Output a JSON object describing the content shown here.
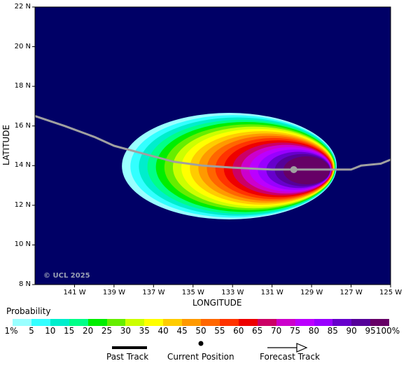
{
  "map": {
    "ylabel": "LATITUDE",
    "xlabel": "LONGITUDE",
    "lat_ticks": [
      "22 N",
      "20 N",
      "18 N",
      "16 N",
      "14 N",
      "12 N",
      "10 N",
      "8 N"
    ],
    "lon_ticks": [
      "141 W",
      "139 W",
      "137 W",
      "135 W",
      "133 W",
      "131 W",
      "129 W",
      "127 W",
      "125 W"
    ],
    "copyright": "© UCL 2025",
    "ocean_color": "#000066",
    "track_color": "#a0a0a0",
    "current_position": {
      "lon": -129.9,
      "lat": 13.8
    },
    "track": [
      {
        "lon": -143.0,
        "lat": 16.5
      },
      {
        "lon": -141.5,
        "lat": 16.0
      },
      {
        "lon": -140.0,
        "lat": 15.45
      },
      {
        "lon": -139.0,
        "lat": 15.0
      },
      {
        "lon": -137.5,
        "lat": 14.6
      },
      {
        "lon": -136.0,
        "lat": 14.2
      },
      {
        "lon": -134.5,
        "lat": 14.0
      },
      {
        "lon": -133.0,
        "lat": 13.9
      },
      {
        "lon": -131.0,
        "lat": 13.8
      },
      {
        "lon": -129.9,
        "lat": 13.8
      },
      {
        "lon": -129.0,
        "lat": 13.8
      },
      {
        "lon": -128.5,
        "lat": 13.8
      },
      {
        "lon": -127.0,
        "lat": 13.8
      },
      {
        "lon": -126.5,
        "lat": 14.0
      },
      {
        "lon": -125.5,
        "lat": 14.1
      },
      {
        "lon": -125.0,
        "lat": 14.3
      }
    ]
  },
  "legend": {
    "title": "Probability",
    "colors": [
      "#99ffff",
      "#33ffff",
      "#00eecc",
      "#00ff88",
      "#00ee00",
      "#66ee00",
      "#ccff00",
      "#ffff00",
      "#ffcc00",
      "#ff9900",
      "#ff6600",
      "#ff3300",
      "#ee0000",
      "#cc0066",
      "#cc00cc",
      "#bb00ff",
      "#9900ff",
      "#6600cc",
      "#550099",
      "#660066"
    ],
    "labels": [
      "1%",
      "5",
      "10",
      "15",
      "20",
      "25",
      "30",
      "35",
      "40",
      "45",
      "50",
      "55",
      "60",
      "65",
      "70",
      "75",
      "80",
      "85",
      "90",
      "95",
      "100%"
    ],
    "past_track": "Past Track",
    "current_position": "Current Position",
    "forecast_track": "Forecast Track"
  }
}
